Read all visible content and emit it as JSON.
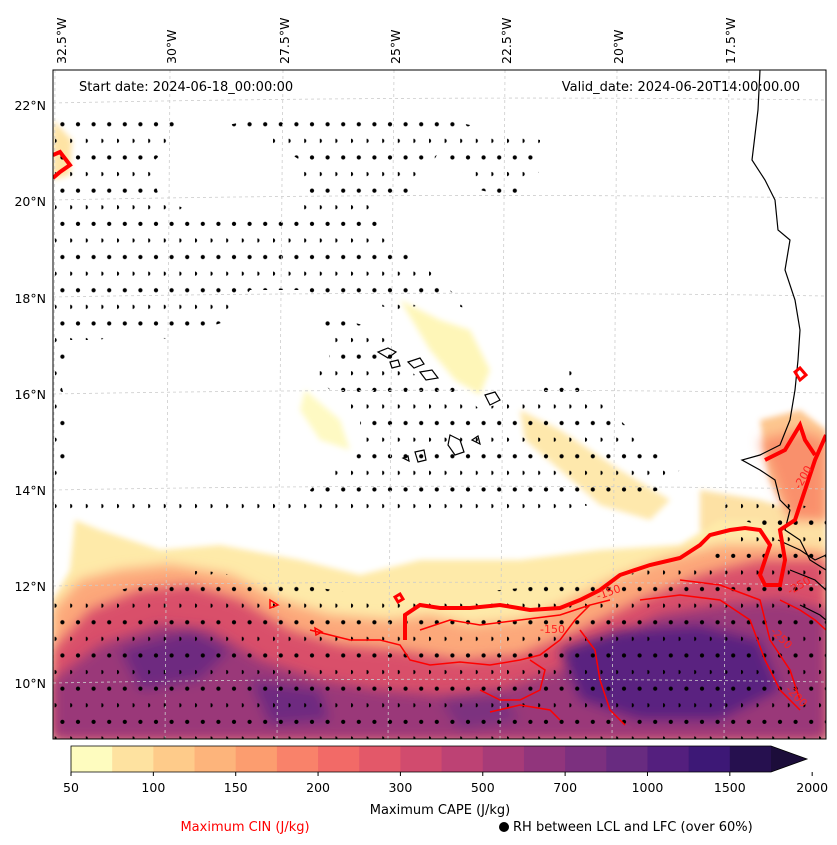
{
  "map": {
    "start_date": "Start date: 2024-06-18_00:00:00",
    "valid_date": "Valid_date: 2024-06-20T14:00:00.00",
    "lon_labels": [
      "32.5°W",
      "30°W",
      "27.5°W",
      "25°W",
      "22.5°W",
      "20°W",
      "17.5°W"
    ],
    "lat_labels": [
      "22°N",
      "20°N",
      "18°N",
      "16°N",
      "14°N",
      "12°N",
      "10°N"
    ],
    "cin_contour_labels": [
      "-150",
      "-150",
      "-250",
      "-250",
      "-200",
      "-200"
    ],
    "coastline_color": "#000000",
    "cin_contour_color": "#ff0000",
    "stipple_color": "#000000"
  },
  "colorbar": {
    "tick_labels": [
      "50",
      "100",
      "150",
      "200",
      "300",
      "500",
      "700",
      "1000",
      "1500",
      "2000"
    ],
    "label": "Maximum CAPE (J/kg)",
    "colors": [
      "#fefcbf",
      "#fee2a0",
      "#fecb8a",
      "#fdb47b",
      "#fc9d6f",
      "#f9826a",
      "#f26a67",
      "#e35869",
      "#d14b6e",
      "#bd4274",
      "#a73b78",
      "#91357c",
      "#7c307f",
      "#682b80",
      "#541f7e",
      "#3d1876",
      "#26104f",
      "#1c0d3a"
    ],
    "extend": "max"
  },
  "legend": {
    "cin_label": "Maximum CIN (J/kg)",
    "rh_label": "RH between LCL and LFC (over 60%)",
    "rh_marker": "black-dot"
  }
}
